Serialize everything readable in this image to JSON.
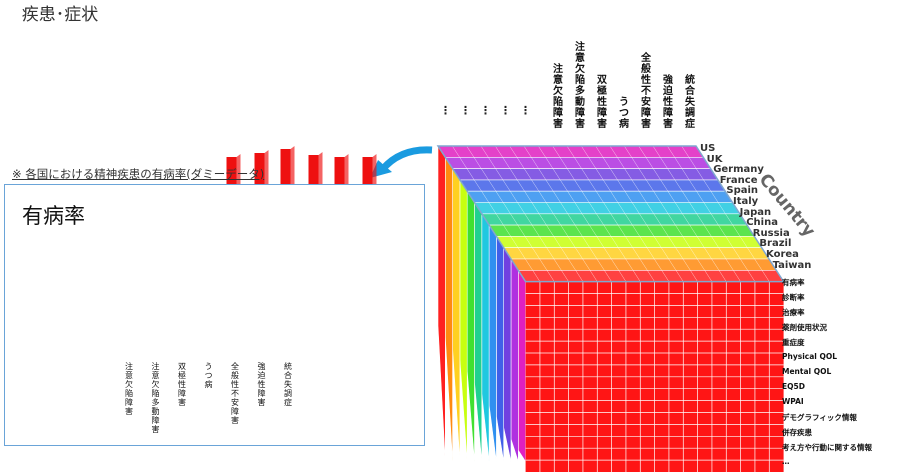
{
  "cube": {
    "title": "疾患･症状",
    "axis_label": "Country",
    "diseases": [
      "注意欠陥障害",
      "注意欠陥多動障害",
      "双極性障害",
      "うつ病",
      "全般性不安障害",
      "強迫性障害",
      "統合失調症"
    ],
    "ellipsis_columns": [
      "⋮",
      "⋮",
      "⋮",
      "⋮",
      "⋮"
    ],
    "countries": [
      "US",
      "UK",
      "Germany",
      "France",
      "Spain",
      "Italy",
      "Japan",
      "China",
      "Russia",
      "Brazil",
      "Korea",
      "Taiwan"
    ],
    "metrics": [
      "有病率",
      "診断率",
      "治療率",
      "薬剤使用状況",
      "重症度",
      "Physical QOL",
      "Mental QOL",
      "EQ5D",
      "WPAI",
      "デモグラフィック情報",
      "併存疾患",
      "考え方や行動に関する情報",
      "…"
    ],
    "colors": {
      "front": "#ff1515",
      "spectrum": [
        "#ff2020",
        "#ff8a10",
        "#ffd020",
        "#c8ff10",
        "#40e030",
        "#20d090",
        "#20c8e0",
        "#3090f0",
        "#4060e8",
        "#7040e0",
        "#b030e0",
        "#e020c0"
      ]
    }
  },
  "panel": {
    "caption": "※ 各国における精神疾患の有病率(ダミーデータ)",
    "title": "有病率",
    "bar_labels": [
      "注意欠陥障害",
      "注意欠陥多動障害",
      "双極性障害",
      "うつ病",
      "全般性不安障害",
      "強迫性障害",
      "統合失調症"
    ]
  }
}
